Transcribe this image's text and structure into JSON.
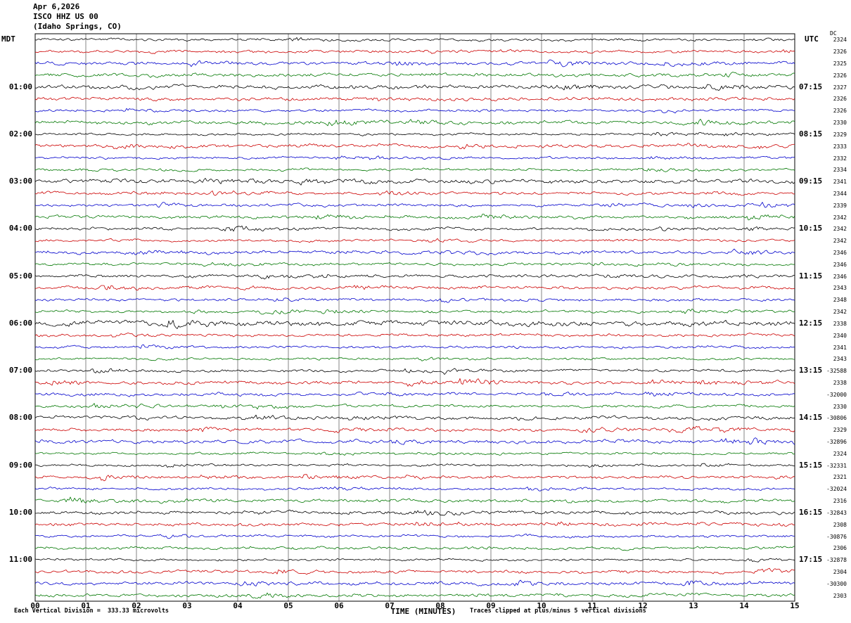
{
  "header": {
    "date": "Apr 6,2026",
    "station": "ISCO HHZ US 00",
    "location": "(Idaho Springs, CO)"
  },
  "axes": {
    "left_label": "MDT",
    "right_label": "UTC",
    "dc_label": "DC",
    "x_title": "TIME (MINUTES)",
    "x_ticks": [
      "00",
      "01",
      "02",
      "03",
      "04",
      "05",
      "06",
      "07",
      "08",
      "09",
      "10",
      "11",
      "12",
      "13",
      "14",
      "15"
    ],
    "footer_left": "Each Vertical Division =  333.33 microvolts",
    "footer_right": "Traces clipped at plus/minus 5 vertical divisions"
  },
  "chart_data": {
    "type": "line",
    "subtype": "helicorder-seismogram",
    "title": "ISCO HHZ US 00 (Idaho Springs, CO) Apr 6,2026",
    "x_axis": {
      "label": "TIME (MINUTES)",
      "min": 0,
      "max": 15,
      "tick_interval": 1
    },
    "minutes_per_row": 15,
    "left_time_zone": "MDT",
    "right_time_zone": "UTC",
    "grid": true,
    "trace_colors": {
      "black": "#000000",
      "red": "#cc0000",
      "blue": "#0000cc",
      "green": "#007700"
    },
    "color_cycle": [
      "black",
      "red",
      "blue",
      "green"
    ],
    "waveform_note": "continuous low-amplitude background seismic noise on every 15-minute trace; no large events",
    "rows": [
      {
        "c": "black",
        "dc": "2324",
        "amp": 1.0
      },
      {
        "c": "red",
        "dc": "2326"
      },
      {
        "c": "blue",
        "dc": "2325"
      },
      {
        "c": "green",
        "dc": "2326"
      },
      {
        "c": "black",
        "l": "01:00",
        "r": "07:15",
        "dc": "2327",
        "amp": 1.15
      },
      {
        "c": "red",
        "dc": "2326"
      },
      {
        "c": "blue",
        "dc": "2326"
      },
      {
        "c": "green",
        "dc": "2330"
      },
      {
        "c": "black",
        "l": "02:00",
        "r": "08:15",
        "dc": "2329"
      },
      {
        "c": "red",
        "dc": "2333"
      },
      {
        "c": "blue",
        "dc": "2332"
      },
      {
        "c": "green",
        "dc": "2334"
      },
      {
        "c": "black",
        "l": "03:00",
        "r": "09:15",
        "dc": "2341",
        "amp": 1.3
      },
      {
        "c": "red",
        "dc": "2344"
      },
      {
        "c": "blue",
        "dc": "2339"
      },
      {
        "c": "green",
        "dc": "2342"
      },
      {
        "c": "black",
        "l": "04:00",
        "r": "10:15",
        "dc": "2342"
      },
      {
        "c": "red",
        "dc": "2342"
      },
      {
        "c": "blue",
        "dc": "2346"
      },
      {
        "c": "green",
        "dc": "2346"
      },
      {
        "c": "black",
        "l": "05:00",
        "r": "11:15",
        "dc": "2346",
        "amp": 1.1
      },
      {
        "c": "red",
        "dc": "2343"
      },
      {
        "c": "blue",
        "dc": "2348"
      },
      {
        "c": "green",
        "dc": "2342"
      },
      {
        "c": "black",
        "l": "06:00",
        "r": "12:15",
        "dc": "2338",
        "amp": 1.8
      },
      {
        "c": "red",
        "dc": "2340"
      },
      {
        "c": "blue",
        "dc": "2341"
      },
      {
        "c": "green",
        "dc": "2343"
      },
      {
        "c": "black",
        "l": "07:00",
        "r": "13:15",
        "dc": "-32588",
        "amp": 1.15
      },
      {
        "c": "red",
        "dc": "2338"
      },
      {
        "c": "blue",
        "dc": "-32000"
      },
      {
        "c": "green",
        "dc": "2330"
      },
      {
        "c": "black",
        "l": "08:00",
        "r": "14:15",
        "dc": "-30806"
      },
      {
        "c": "red",
        "dc": "2329"
      },
      {
        "c": "blue",
        "dc": "-32896"
      },
      {
        "c": "green",
        "dc": "2324"
      },
      {
        "c": "black",
        "l": "09:00",
        "r": "15:15",
        "dc": "-32331"
      },
      {
        "c": "red",
        "dc": "2321"
      },
      {
        "c": "blue",
        "dc": "-32024"
      },
      {
        "c": "green",
        "dc": "2316"
      },
      {
        "c": "black",
        "l": "10:00",
        "r": "16:15",
        "dc": "-32843"
      },
      {
        "c": "red",
        "dc": "2308"
      },
      {
        "c": "blue",
        "dc": "-30876"
      },
      {
        "c": "green",
        "dc": "2306"
      },
      {
        "c": "black",
        "l": "11:00",
        "r": "17:15",
        "dc": "-32878"
      },
      {
        "c": "red",
        "dc": "2304"
      },
      {
        "c": "blue",
        "dc": "-30300"
      },
      {
        "c": "green",
        "dc": "2303"
      }
    ]
  }
}
